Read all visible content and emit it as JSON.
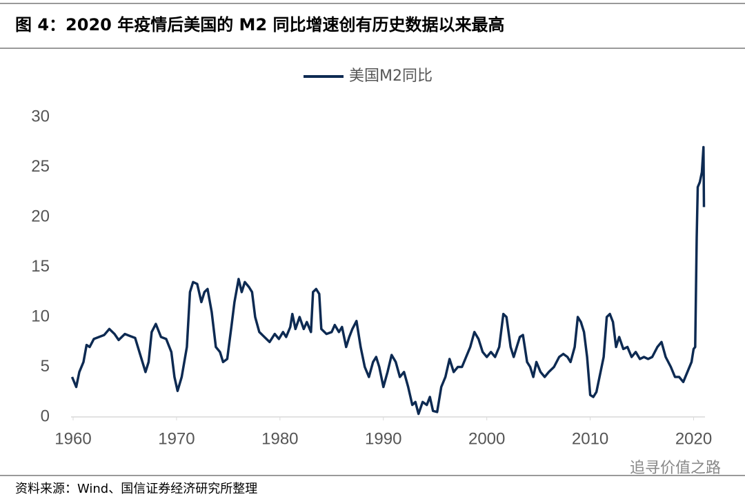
{
  "chart_data": {
    "type": "line",
    "title": "图 4：2020 年疫情后美国的 M2 同比增速创有历史数据以来最高",
    "source": "资料来源：Wind、国信证券经济研究所整理",
    "watermark": "追寻价值之路",
    "x": [
      1959.9,
      1960.3,
      1960.6,
      1961.0,
      1961.3,
      1961.6,
      1962.0,
      1962.5,
      1963.0,
      1963.5,
      1964.0,
      1964.4,
      1965.0,
      1965.5,
      1966.0,
      1966.5,
      1967.0,
      1967.3,
      1967.6,
      1968.0,
      1968.5,
      1969.0,
      1969.5,
      1969.8,
      1970.1,
      1970.5,
      1971.0,
      1971.3,
      1971.6,
      1972.0,
      1972.4,
      1972.7,
      1973.0,
      1973.4,
      1973.8,
      1974.2,
      1974.5,
      1974.9,
      1975.3,
      1975.6,
      1976.0,
      1976.3,
      1976.6,
      1977.0,
      1977.3,
      1977.6,
      1978.0,
      1978.5,
      1979.0,
      1979.5,
      1979.9,
      1980.3,
      1980.6,
      1981.0,
      1981.2,
      1981.5,
      1981.9,
      1982.3,
      1982.6,
      1983.0,
      1983.2,
      1983.5,
      1983.8,
      1984.0,
      1984.5,
      1985.0,
      1985.3,
      1985.7,
      1986.0,
      1986.4,
      1986.7,
      1987.0,
      1987.4,
      1987.8,
      1988.2,
      1988.6,
      1989.0,
      1989.3,
      1989.6,
      1990.0,
      1990.4,
      1990.8,
      1991.2,
      1991.6,
      1992.0,
      1992.4,
      1992.8,
      1993.1,
      1993.4,
      1993.8,
      1994.2,
      1994.5,
      1994.8,
      1995.2,
      1995.6,
      1996.0,
      1996.4,
      1996.8,
      1997.2,
      1997.6,
      1998.0,
      1998.4,
      1998.8,
      1999.2,
      1999.6,
      2000.0,
      2000.4,
      2000.8,
      2001.2,
      2001.6,
      2001.9,
      2002.3,
      2002.6,
      2002.9,
      2003.2,
      2003.5,
      2003.9,
      2004.2,
      2004.5,
      2004.8,
      2005.2,
      2005.6,
      2006.0,
      2006.5,
      2007.0,
      2007.4,
      2007.8,
      2008.1,
      2008.5,
      2008.8,
      2009.1,
      2009.4,
      2009.7,
      2010.0,
      2010.3,
      2010.6,
      2011.0,
      2011.3,
      2011.6,
      2011.9,
      2012.2,
      2012.5,
      2012.8,
      2013.2,
      2013.6,
      2014.0,
      2014.4,
      2014.8,
      2015.2,
      2015.6,
      2016.0,
      2016.5,
      2016.9,
      2017.3,
      2017.8,
      2018.2,
      2018.6,
      2019.0,
      2019.4,
      2019.8,
      2020.0,
      2020.15,
      2020.3,
      2020.4,
      2020.6,
      2020.8,
      2020.95,
      2021.0
    ],
    "series": [
      {
        "name": "美国M2同比",
        "color": "#0d2a52",
        "values": [
          4.0,
          3.0,
          4.5,
          5.5,
          7.2,
          7.0,
          7.8,
          8.0,
          8.2,
          8.8,
          8.3,
          7.7,
          8.3,
          8.1,
          7.9,
          6.2,
          4.5,
          5.5,
          8.5,
          9.3,
          8.0,
          7.8,
          6.5,
          4.0,
          2.6,
          4.0,
          7.0,
          12.5,
          13.5,
          13.3,
          11.5,
          12.5,
          12.8,
          10.5,
          7.0,
          6.5,
          5.5,
          5.8,
          9.0,
          11.5,
          13.8,
          12.5,
          13.5,
          13.0,
          12.5,
          10.0,
          8.5,
          8.0,
          7.5,
          8.3,
          7.8,
          8.5,
          8.0,
          9.0,
          10.3,
          8.8,
          10.0,
          8.8,
          9.5,
          8.5,
          12.5,
          12.8,
          12.3,
          8.8,
          8.3,
          8.5,
          9.2,
          8.5,
          9.0,
          7.0,
          8.0,
          8.8,
          9.6,
          7.0,
          5.0,
          4.0,
          5.5,
          6.0,
          5.0,
          3.0,
          4.5,
          6.2,
          5.5,
          4.0,
          4.5,
          3.0,
          1.2,
          1.5,
          0.3,
          1.5,
          1.2,
          2.0,
          0.6,
          0.5,
          3.0,
          4.0,
          5.8,
          4.5,
          5.0,
          5.0,
          6.0,
          7.0,
          8.5,
          7.8,
          6.5,
          6.0,
          6.5,
          6.0,
          7.0,
          10.3,
          10.0,
          7.0,
          6.0,
          7.0,
          8.0,
          8.2,
          5.5,
          5.0,
          4.0,
          5.5,
          4.5,
          4.0,
          4.5,
          5.0,
          6.0,
          6.3,
          6.0,
          5.5,
          7.0,
          10.0,
          9.5,
          8.5,
          6.0,
          2.2,
          2.0,
          2.5,
          4.5,
          6.0,
          10.0,
          10.3,
          9.5,
          7.0,
          8.0,
          6.8,
          7.0,
          6.0,
          6.5,
          5.8,
          6.0,
          5.8,
          6.0,
          7.0,
          7.5,
          6.0,
          5.0,
          4.0,
          4.0,
          3.5,
          4.5,
          5.5,
          6.8,
          7.0,
          18.0,
          23.0,
          23.5,
          24.5,
          27.0,
          21.0
        ]
      }
    ],
    "xlim": [
      1959.8,
      2021.1
    ],
    "xticks": [
      1960,
      1970,
      1980,
      1990,
      2000,
      2010,
      2020
    ],
    "ylim": [
      0,
      30
    ],
    "yticks": [
      0,
      5,
      10,
      15,
      20,
      25,
      30
    ],
    "legend": "top"
  }
}
